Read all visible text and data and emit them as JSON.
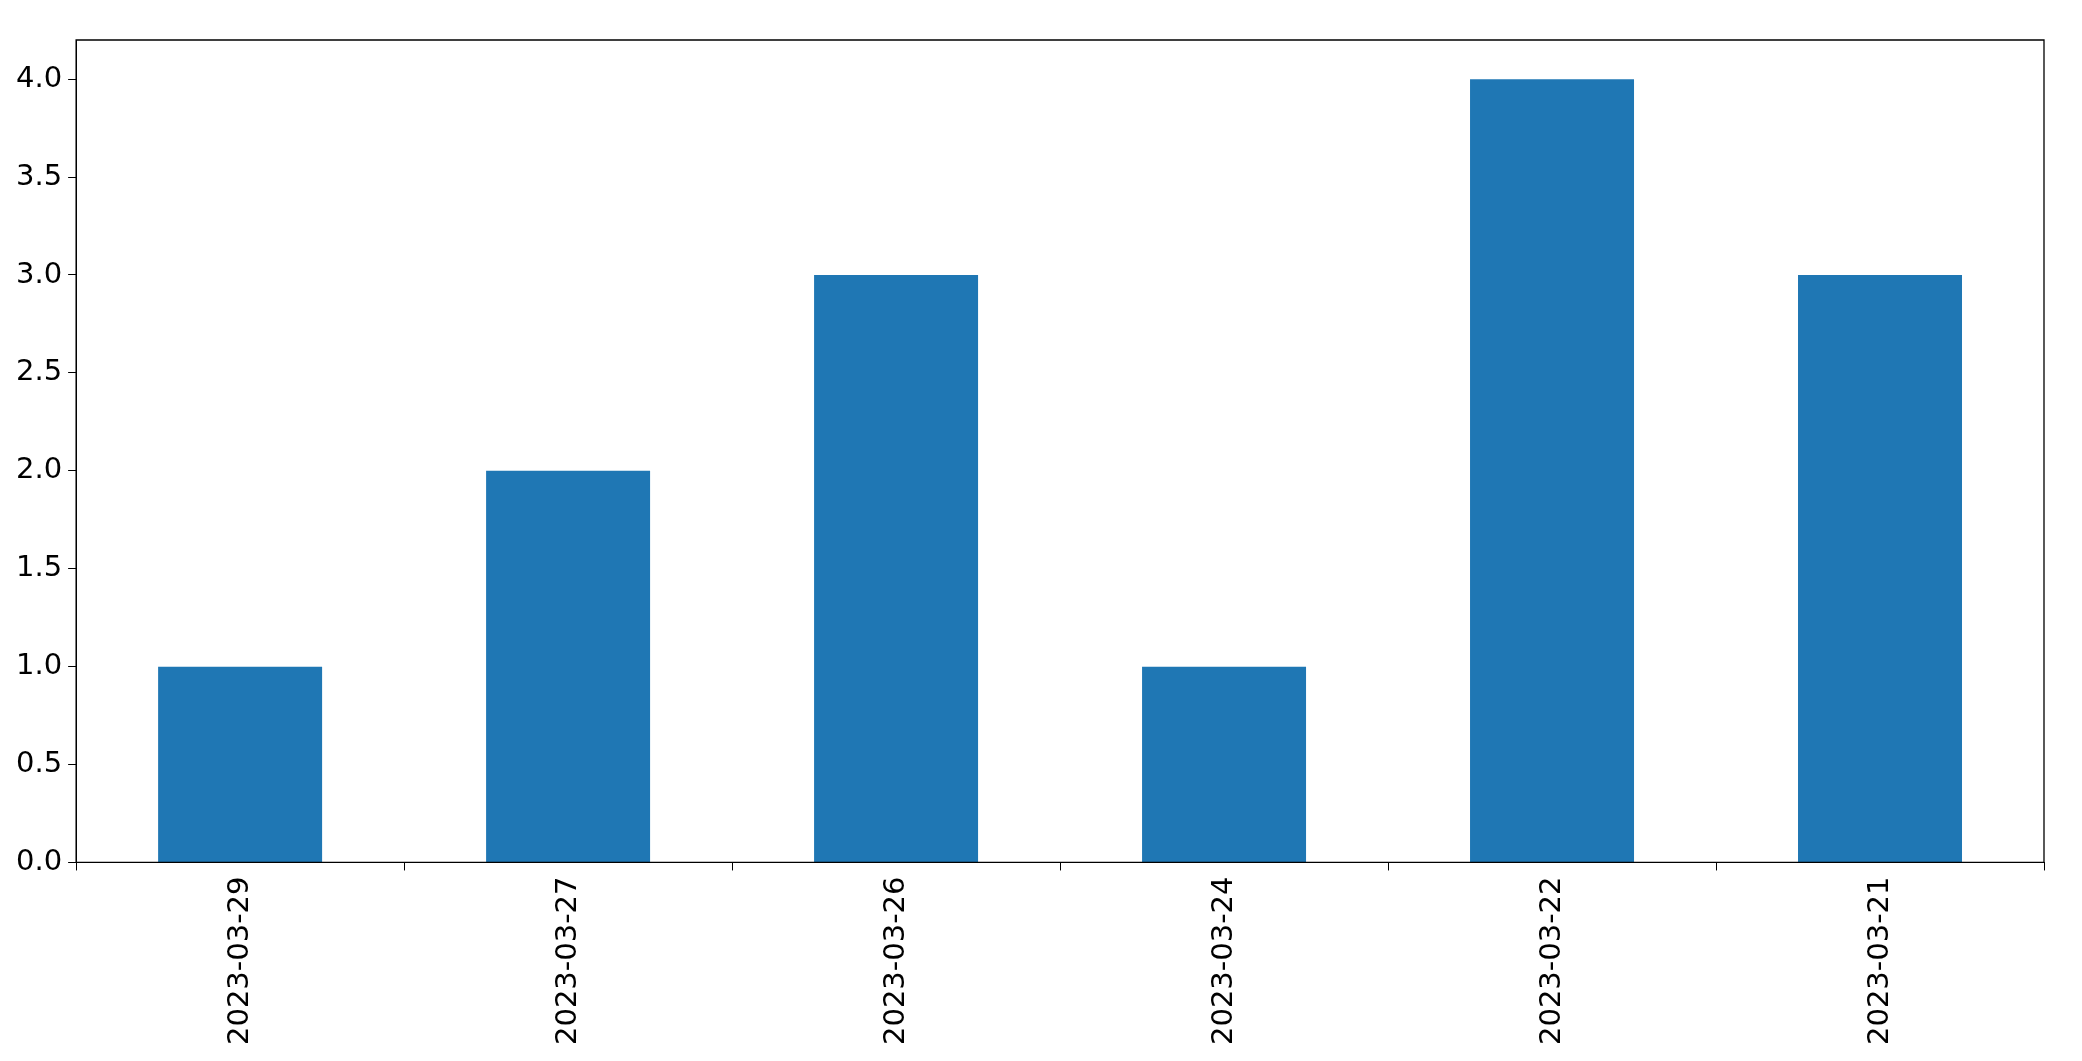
{
  "chart_data": {
    "type": "bar",
    "categories": [
      "2023-03-29",
      "2023-03-27",
      "2023-03-26",
      "2023-03-24",
      "2023-03-22",
      "2023-03-21"
    ],
    "values": [
      1,
      2,
      3,
      1,
      4,
      3
    ],
    "color": "#1f77b4",
    "ylim": [
      0,
      4.2
    ],
    "yticks": [
      {
        "value": 0,
        "label": "0.0"
      },
      {
        "value": 0.5,
        "label": "0.5"
      },
      {
        "value": 1,
        "label": "1.0"
      },
      {
        "value": 1.5,
        "label": "1.5"
      },
      {
        "value": 2,
        "label": "2.0"
      },
      {
        "value": 2.5,
        "label": "2.5"
      },
      {
        "value": 3,
        "label": "3.0"
      },
      {
        "value": 3.5,
        "label": "3.5"
      },
      {
        "value": 4,
        "label": "4.0"
      }
    ],
    "grid": false,
    "legend": false
  }
}
